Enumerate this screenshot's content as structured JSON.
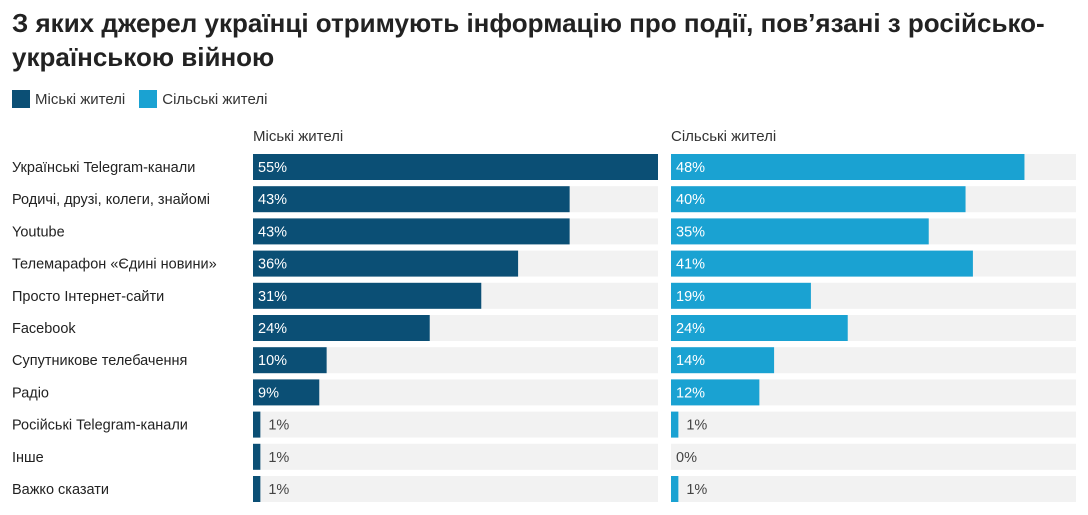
{
  "title": "З яких джерел українці отримують інформацію про події, пов’язані з російсько-українською війною",
  "chart_data": {
    "type": "bar",
    "orientation": "horizontal",
    "title": "З яких джерел українці отримують інформацію про події, пов’язані з російсько-українською війною",
    "categories": [
      "Українські Telegram-канали",
      "Родичі, друзі, колеги, знайомі",
      "Youtube",
      "Телемарафон «Єдині новини»",
      "Просто Інтернет-сайти",
      "Facebook",
      "Супутникове телебачення",
      "Радіо",
      "Російські Telegram-канали",
      "Інше",
      "Важко сказати"
    ],
    "series": [
      {
        "name": "Міські жителі",
        "color": "#0b4f75",
        "values": [
          55,
          43,
          43,
          36,
          31,
          24,
          10,
          9,
          1,
          1,
          1
        ],
        "labels": [
          "55%",
          "43%",
          "43%",
          "36%",
          "31%",
          "24%",
          "10%",
          "9%",
          "1%",
          "1%",
          "1%"
        ]
      },
      {
        "name": "Сільські жителі",
        "color": "#1aa2d2",
        "values": [
          48,
          40,
          35,
          41,
          19,
          24,
          14,
          12,
          1,
          0,
          1
        ],
        "labels": [
          "48%",
          "40%",
          "35%",
          "41%",
          "19%",
          "24%",
          "14%",
          "12%",
          "1%",
          "0%",
          "1%"
        ]
      }
    ],
    "xlim": [
      0,
      55
    ],
    "legend": "top-left",
    "track_color": "#f2f2f2"
  }
}
